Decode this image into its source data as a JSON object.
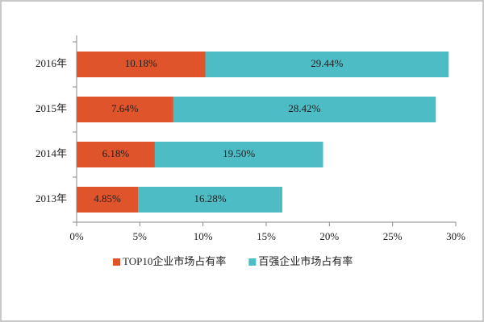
{
  "chart_data": {
    "type": "bar",
    "overlap": true,
    "categories": [
      "2016年",
      "2015年",
      "2014年",
      "2013年"
    ],
    "series": [
      {
        "name": "百强企业市场占有率",
        "color": "#4dbcc4",
        "values": [
          29.44,
          28.42,
          19.5,
          16.28
        ],
        "value_labels": [
          "29.44%",
          "28.42%",
          "19.50%",
          "16.28%"
        ]
      },
      {
        "name": "TOP10企业市场占有率",
        "color": "#e0542c",
        "values": [
          10.18,
          7.64,
          6.18,
          4.85
        ],
        "value_labels": [
          "10.18%",
          "7.64%",
          "6.18%",
          "4.85%"
        ]
      }
    ],
    "xlim": [
      0,
      30
    ],
    "xticks": [
      {
        "value": 0,
        "label": "0%"
      },
      {
        "value": 5,
        "label": "5%"
      },
      {
        "value": 10,
        "label": "10%"
      },
      {
        "value": 15,
        "label": "15%"
      },
      {
        "value": 20,
        "label": "20%"
      },
      {
        "value": 25,
        "label": "25%"
      },
      {
        "value": 30,
        "label": "30%"
      }
    ],
    "legend_order": [
      1,
      0
    ]
  }
}
